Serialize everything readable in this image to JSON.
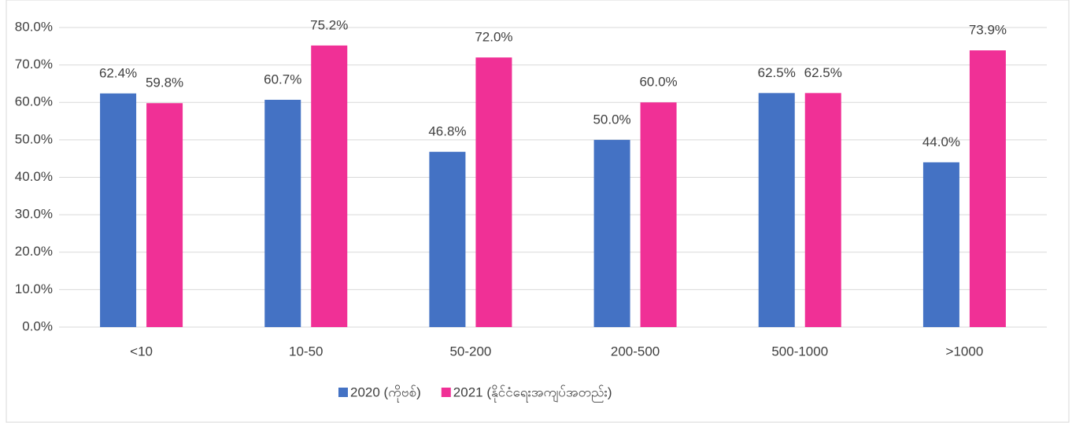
{
  "chart_data": {
    "type": "bar",
    "categories": [
      "<10",
      "10-50",
      "50-200",
      "200-500",
      "500-1000",
      ">1000"
    ],
    "series": [
      {
        "name": "2020 (ကိုဗစ်)",
        "color": "#4472c4",
        "values": [
          62.4,
          60.7,
          46.8,
          50.0,
          62.5,
          44.0
        ],
        "value_labels": [
          "62.4%",
          "60.7%",
          "46.8%",
          "50.0%",
          "62.5%",
          "44.0%"
        ]
      },
      {
        "name": "2021 (နိုင်ငံရေးအကျပ်အတည်း)",
        "color": "#f03096",
        "values": [
          59.8,
          75.2,
          72.0,
          60.0,
          62.5,
          73.9
        ],
        "value_labels": [
          "59.8%",
          "75.2%",
          "72.0%",
          "60.0%",
          "62.5%",
          "73.9%"
        ]
      }
    ],
    "ylim": [
      0,
      80
    ],
    "yticks": [
      {
        "value": 0,
        "label": "0.0%"
      },
      {
        "value": 10,
        "label": "10.0%"
      },
      {
        "value": 20,
        "label": "20.0%"
      },
      {
        "value": 30,
        "label": "30.0%"
      },
      {
        "value": 40,
        "label": "40.0%"
      },
      {
        "value": 50,
        "label": "50.0%"
      },
      {
        "value": 60,
        "label": "60.0%"
      },
      {
        "value": 70,
        "label": "70.0%"
      },
      {
        "value": 80,
        "label": "80.0%"
      }
    ],
    "grid": true,
    "legend": "bottom"
  }
}
